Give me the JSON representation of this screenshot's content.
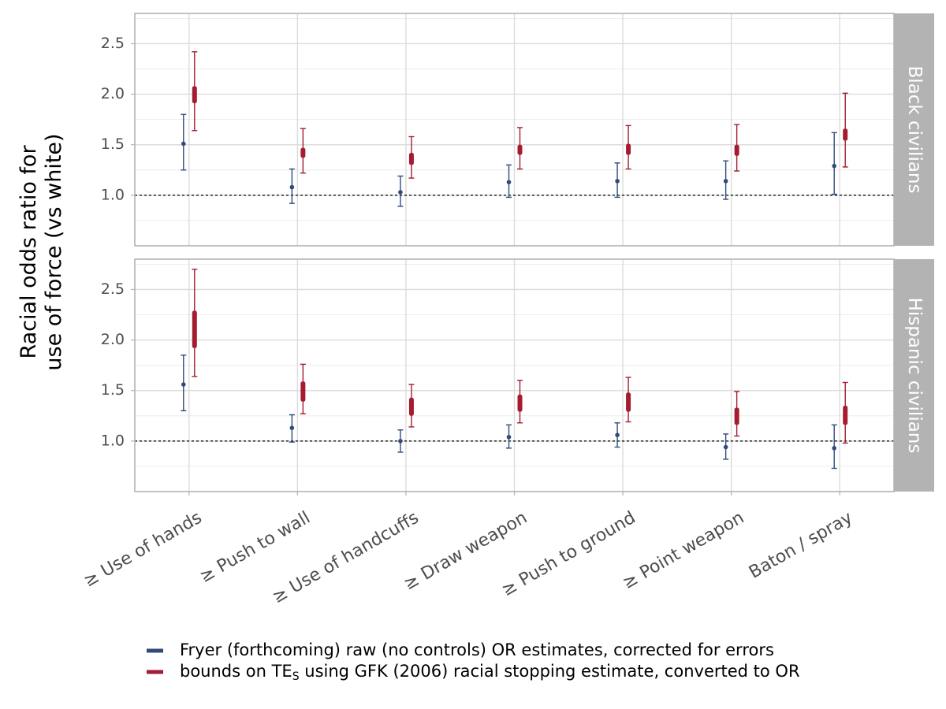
{
  "chart_data": {
    "type": "scatter",
    "ylabel": [
      "Racial odds ratio for",
      "use of force (vs white)"
    ],
    "xlabel": "",
    "categories": [
      "≥ Use of hands",
      "≥ Push to wall",
      "≥ Use of handcuffs",
      "≥ Draw weapon",
      "≥ Push to ground",
      "≥ Point weapon",
      "Baton / spray"
    ],
    "y_ticks": [
      1.0,
      1.5,
      2.0,
      2.5
    ],
    "y_tick_labels": [
      "1.0",
      "1.5",
      "2.0",
      "2.5"
    ],
    "ylim": [
      0.5,
      2.8
    ],
    "reference_line": 1.0,
    "grid": true,
    "legend_position": "bottom",
    "colors": {
      "fryer": "#2f4b7c",
      "bounds": "#a51c30",
      "strip": "#b3b3b3",
      "ref_line": "#000000"
    },
    "legend": [
      {
        "series": "fryer",
        "parts": [
          {
            "text": "Fryer (forthcoming) raw (no controls) OR estimates, corrected for errors"
          }
        ]
      },
      {
        "series": "bounds",
        "parts": [
          {
            "text": "bounds on TE"
          },
          {
            "text": "S",
            "sub": true
          },
          {
            "text": " using GFK (2006) racial stopping estimate, converted to OR"
          }
        ]
      }
    ],
    "panels": [
      {
        "strip_label": "Black civilians",
        "fryer": [
          {
            "est": 1.51,
            "lo": 1.25,
            "hi": 1.8
          },
          {
            "est": 1.08,
            "lo": 0.92,
            "hi": 1.26
          },
          {
            "est": 1.03,
            "lo": 0.89,
            "hi": 1.19
          },
          {
            "est": 1.13,
            "lo": 0.98,
            "hi": 1.3
          },
          {
            "est": 1.14,
            "lo": 0.98,
            "hi": 1.32
          },
          {
            "est": 1.14,
            "lo": 0.96,
            "hi": 1.34
          },
          {
            "est": 1.29,
            "lo": 1.01,
            "hi": 1.62
          }
        ],
        "bounds": [
          {
            "lo": 1.91,
            "hi": 2.08,
            "ci_lo": 1.64,
            "ci_hi": 2.42
          },
          {
            "lo": 1.37,
            "hi": 1.47,
            "ci_lo": 1.22,
            "ci_hi": 1.66
          },
          {
            "lo": 1.3,
            "hi": 1.42,
            "ci_lo": 1.17,
            "ci_hi": 1.58
          },
          {
            "lo": 1.4,
            "hi": 1.5,
            "ci_lo": 1.26,
            "ci_hi": 1.67
          },
          {
            "lo": 1.4,
            "hi": 1.51,
            "ci_lo": 1.26,
            "ci_hi": 1.69
          },
          {
            "lo": 1.39,
            "hi": 1.5,
            "ci_lo": 1.24,
            "ci_hi": 1.7
          },
          {
            "lo": 1.54,
            "hi": 1.66,
            "ci_lo": 1.28,
            "ci_hi": 2.01
          }
        ]
      },
      {
        "strip_label": "Hispanic civilians",
        "fryer": [
          {
            "est": 1.56,
            "lo": 1.3,
            "hi": 1.85
          },
          {
            "est": 1.13,
            "lo": 0.99,
            "hi": 1.26
          },
          {
            "est": 1.0,
            "lo": 0.89,
            "hi": 1.11
          },
          {
            "est": 1.04,
            "lo": 0.93,
            "hi": 1.16
          },
          {
            "est": 1.06,
            "lo": 0.94,
            "hi": 1.18
          },
          {
            "est": 0.94,
            "lo": 0.82,
            "hi": 1.07
          },
          {
            "est": 0.93,
            "lo": 0.73,
            "hi": 1.16
          }
        ],
        "bounds": [
          {
            "lo": 1.92,
            "hi": 2.29,
            "ci_lo": 1.64,
            "ci_hi": 2.7
          },
          {
            "lo": 1.39,
            "hi": 1.59,
            "ci_lo": 1.27,
            "ci_hi": 1.76
          },
          {
            "lo": 1.25,
            "hi": 1.43,
            "ci_lo": 1.14,
            "ci_hi": 1.56
          },
          {
            "lo": 1.29,
            "hi": 1.46,
            "ci_lo": 1.18,
            "ci_hi": 1.6
          },
          {
            "lo": 1.29,
            "hi": 1.48,
            "ci_lo": 1.19,
            "ci_hi": 1.63
          },
          {
            "lo": 1.16,
            "hi": 1.33,
            "ci_lo": 1.05,
            "ci_hi": 1.49
          },
          {
            "lo": 1.16,
            "hi": 1.35,
            "ci_lo": 0.98,
            "ci_hi": 1.58
          }
        ]
      }
    ]
  }
}
